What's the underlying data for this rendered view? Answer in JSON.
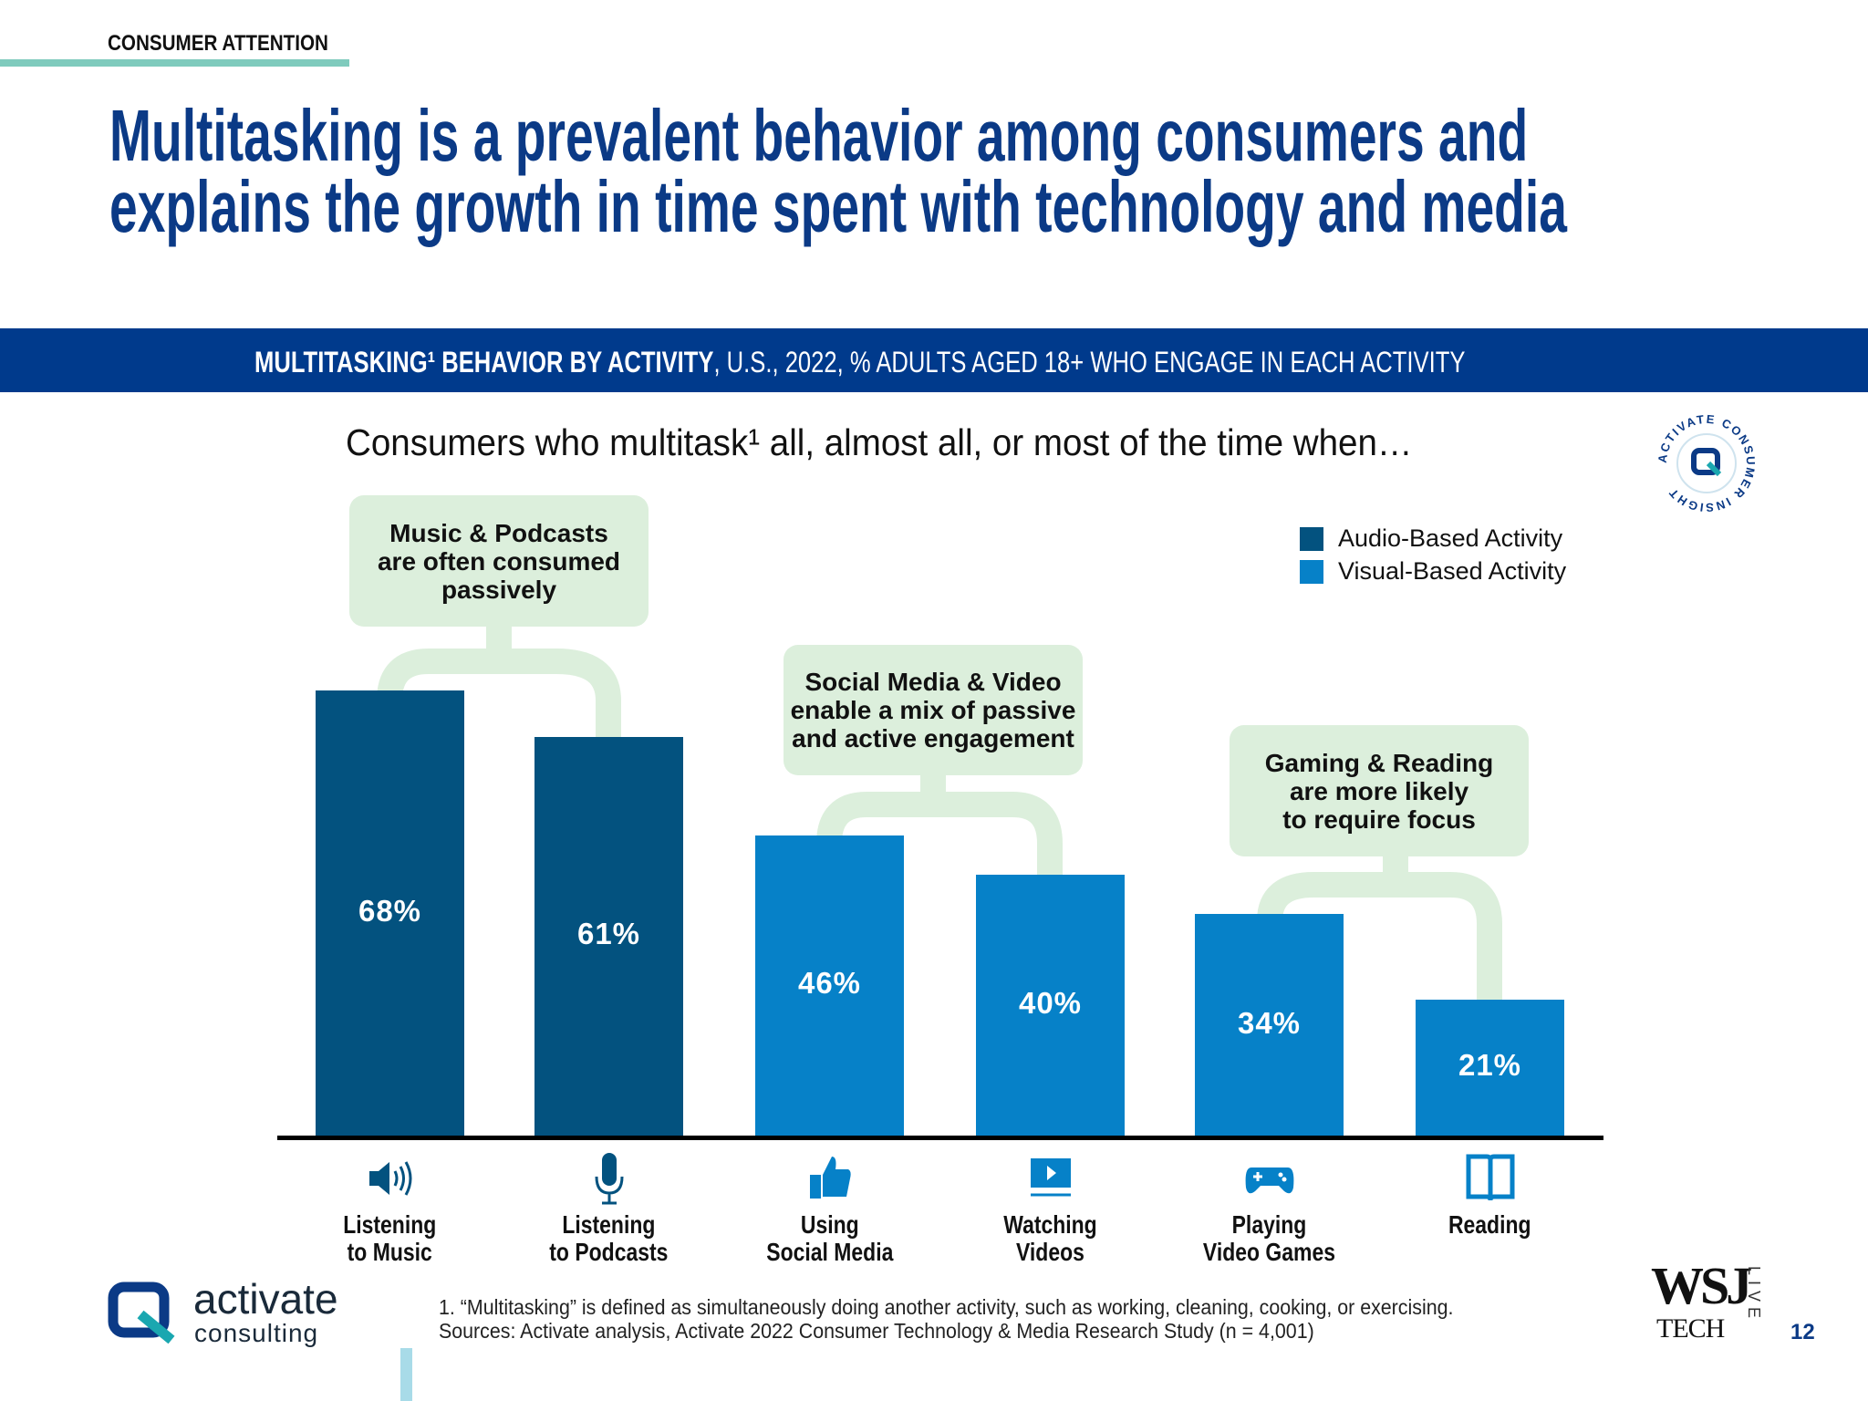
{
  "section_label": "CONSUMER ATTENTION",
  "title_lines": [
    "Multitasking is a prevalent behavior among consumers and",
    "explains the growth in time spent with technology and media"
  ],
  "banner": {
    "bold": "MULTITASKING¹ BEHAVIOR BY ACTIVITY",
    "rest": ", U.S., 2022, % ADULTS AGED 18+ WHO ENGAGE IN EACH ACTIVITY"
  },
  "subtitle": "Consumers who multitask¹ all, almost all, or most of the time when…",
  "callouts": [
    {
      "text": "Music & Podcasts are often consumed passively",
      "lines": [
        "Music & Podcasts",
        "are often consumed",
        "passively"
      ]
    },
    {
      "text": "Social Media & Video enable a mix of passive and active engagement",
      "lines": [
        "Social Media & Video",
        "enable a mix of passive",
        "and active engagement"
      ]
    },
    {
      "text": "Gaming & Reading are more likely to require focus",
      "lines": [
        "Gaming & Reading",
        "are more likely",
        "to require focus"
      ]
    }
  ],
  "colors": {
    "audio": "#03527f",
    "visual": "#0681c8",
    "callout": "#dcefdc",
    "banner": "#003a8c",
    "title": "#0b3a86"
  },
  "chart_data": {
    "type": "bar",
    "title": "MULTITASKING¹ BEHAVIOR BY ACTIVITY, U.S., 2022, % ADULTS AGED 18+ WHO ENGAGE IN EACH ACTIVITY",
    "categories": [
      "Listening to Music",
      "Listening to Podcasts",
      "Using Social Media",
      "Watching Videos",
      "Playing Video Games",
      "Reading"
    ],
    "category_lines": [
      [
        "Listening",
        "to Music"
      ],
      [
        "Listening",
        "to Podcasts"
      ],
      [
        "Using",
        "Social Media"
      ],
      [
        "Watching",
        "Videos"
      ],
      [
        "Playing",
        "Video Games"
      ],
      [
        "Reading",
        ""
      ]
    ],
    "icons": [
      "speaker-icon",
      "microphone-icon",
      "thumbs-up-icon",
      "video-player-icon",
      "gamepad-icon",
      "book-icon"
    ],
    "values": [
      68,
      61,
      46,
      40,
      34,
      21
    ],
    "labels": [
      "68%",
      "61%",
      "46%",
      "40%",
      "34%",
      "21%"
    ],
    "groups": [
      "Audio-Based Activity",
      "Audio-Based Activity",
      "Visual-Based Activity",
      "Visual-Based Activity",
      "Visual-Based Activity",
      "Visual-Based Activity"
    ],
    "legend": [
      "Audio-Based Activity",
      "Visual-Based Activity"
    ],
    "legend_position": "top-right",
    "ylim": [
      0,
      100
    ],
    "grid": false
  },
  "footnote_lines": [
    "1. “Multitasking” is defined as simultaneously doing another activity, such as working, cleaning, cooking, or exercising.",
    "Sources: Activate analysis, Activate 2022 Consumer Technology & Media Research Study (n = 4,001)"
  ],
  "logo": {
    "name": "activate",
    "sub": "consulting"
  },
  "badge_text": "ACTIVATE CONSUMER INSIGHT",
  "partner_logo": {
    "top": "WSJ",
    "bottom": "TECH",
    "side": "LIVE"
  },
  "page_number": "12"
}
